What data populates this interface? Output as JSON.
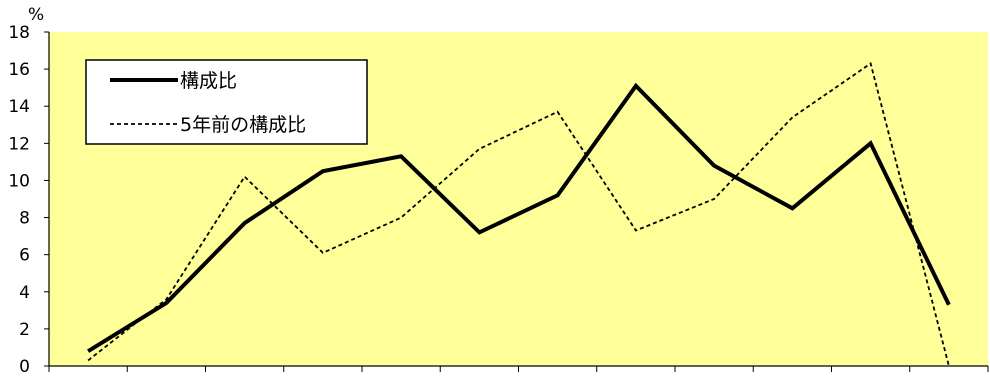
{
  "chart_data": {
    "type": "line",
    "title": "",
    "xlabel": "",
    "ylabel": "",
    "y_unit": "%",
    "ylim": [
      0,
      18
    ],
    "y_ticks": [
      0,
      2,
      4,
      6,
      8,
      10,
      12,
      14,
      16,
      18
    ],
    "grid": false,
    "legend_position": "top-left",
    "plot_background": "#ffff99",
    "series": [
      {
        "name": "構成比",
        "style": "solid",
        "color": "#000000",
        "values": [
          0.8,
          3.4,
          7.7,
          10.5,
          11.3,
          7.2,
          9.2,
          15.1,
          10.8,
          8.5,
          12.0,
          3.3
        ]
      },
      {
        "name": "5年前の構成比",
        "style": "dashed",
        "color": "#000000",
        "values": [
          0.3,
          3.6,
          10.2,
          6.1,
          8.0,
          11.7,
          13.7,
          7.3,
          9.0,
          13.4,
          16.3,
          0.0
        ]
      }
    ]
  }
}
